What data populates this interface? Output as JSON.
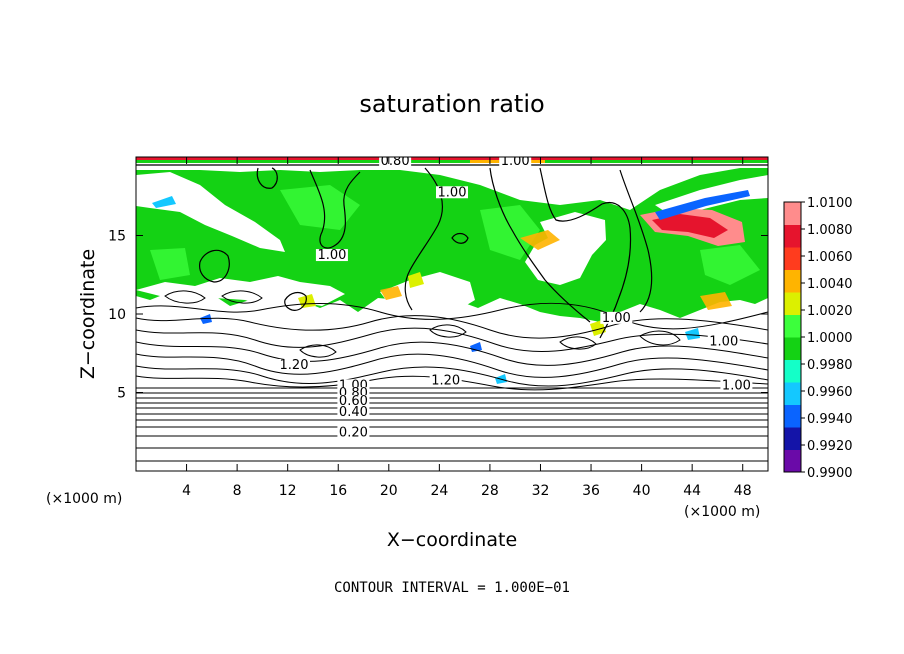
{
  "chart_data": {
    "type": "heatmap",
    "title": "saturation ratio",
    "xlabel": "X−coordinate",
    "ylabel": "Z−coordinate",
    "x_unit": "(×1000 m)",
    "y_unit": "(×1000 m)",
    "x_unit_right": "(×1000 m)",
    "xlim": [
      0,
      50
    ],
    "ylim": [
      0,
      20
    ],
    "x_ticks": [
      "4",
      "8",
      "12",
      "16",
      "20",
      "24",
      "28",
      "32",
      "36",
      "40",
      "44",
      "48"
    ],
    "x_tick_values": [
      4,
      8,
      12,
      16,
      20,
      24,
      28,
      32,
      36,
      40,
      44,
      48
    ],
    "y_ticks": [
      "5",
      "10",
      "15"
    ],
    "y_tick_values": [
      5,
      10,
      15
    ],
    "contour_interval_text": "CONTOUR INTERVAL = 1.000E−01",
    "colorbar": {
      "labels": [
        "1.0100",
        "1.0080",
        "1.0060",
        "1.0040",
        "1.0020",
        "1.0000",
        "0.9980",
        "0.9960",
        "0.9940",
        "0.9920",
        "0.9900"
      ],
      "min": 0.99,
      "max": 1.01,
      "colors": [
        "#6a0aa8",
        "#1414a8",
        "#0a64ff",
        "#14c8ff",
        "#14ffc8",
        "#14d214",
        "#3cff3c",
        "#dcf000",
        "#ffb400",
        "#ff3c1e",
        "#e6142d",
        "#ff8c8c"
      ]
    },
    "contour_labels": [
      {
        "text": "0.80",
        "x": 20.5,
        "z": 19.5
      },
      {
        "text": "1.00",
        "x": 30.0,
        "z": 19.5
      },
      {
        "text": "1.00",
        "x": 25.0,
        "z": 17.5
      },
      {
        "text": "1.00",
        "x": 15.5,
        "z": 13.5
      },
      {
        "text": "1.00",
        "x": 38.0,
        "z": 9.5
      },
      {
        "text": "1.00",
        "x": 46.5,
        "z": 8.0
      },
      {
        "text": "1.00",
        "x": 47.5,
        "z": 5.2
      },
      {
        "text": "1.20",
        "x": 12.5,
        "z": 6.5
      },
      {
        "text": "1.20",
        "x": 24.5,
        "z": 5.5
      },
      {
        "text": "1.00",
        "x": 17.2,
        "z": 5.2
      },
      {
        "text": "0.80",
        "x": 17.2,
        "z": 4.7
      },
      {
        "text": "0.60",
        "x": 17.2,
        "z": 4.2
      },
      {
        "text": "0.40",
        "x": 17.2,
        "z": 3.5
      },
      {
        "text": "0.20",
        "x": 17.2,
        "z": 2.2
      }
    ]
  }
}
